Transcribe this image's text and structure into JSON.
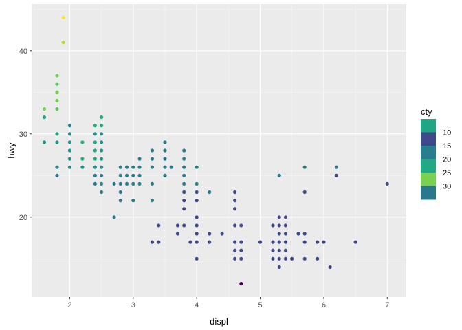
{
  "chart_data": {
    "type": "scatter",
    "xlabel": "displ",
    "ylabel": "hwy",
    "xlim": [
      1.4,
      7.3
    ],
    "ylim": [
      10.4,
      45.6
    ],
    "x_ticks": [
      2,
      3,
      4,
      5,
      6,
      7
    ],
    "y_ticks": [
      20,
      30,
      40
    ],
    "grid": true,
    "panel_background": "#ebebeb",
    "grid_color": "#ffffff",
    "legend": {
      "title": "cty",
      "placement": "right",
      "labels": [
        "10",
        "15",
        "20",
        "25",
        "30"
      ],
      "colors": [
        "#21a685",
        "#3e4a89",
        "#287d8e",
        "#22a884",
        "#7ad151",
        "#2a788e"
      ]
    },
    "points": [
      {
        "x": 1.6,
        "y": 33,
        "color": "#7ad151"
      },
      {
        "x": 1.6,
        "y": 32,
        "color": "#22a884"
      },
      {
        "x": 1.6,
        "y": 29,
        "color": "#21918c"
      },
      {
        "x": 1.8,
        "y": 37,
        "color": "#7ad151"
      },
      {
        "x": 1.8,
        "y": 36,
        "color": "#5ec962"
      },
      {
        "x": 1.8,
        "y": 35,
        "color": "#7ad151"
      },
      {
        "x": 1.8,
        "y": 34,
        "color": "#7ad151"
      },
      {
        "x": 1.8,
        "y": 33,
        "color": "#5ec962"
      },
      {
        "x": 1.8,
        "y": 30,
        "color": "#22a884"
      },
      {
        "x": 1.8,
        "y": 29,
        "color": "#21918c"
      },
      {
        "x": 1.8,
        "y": 26,
        "color": "#287d8e"
      },
      {
        "x": 1.8,
        "y": 25,
        "color": "#2a788e"
      },
      {
        "x": 1.9,
        "y": 44,
        "color": "#fde725"
      },
      {
        "x": 1.9,
        "y": 41,
        "color": "#b5de2b"
      },
      {
        "x": 2.0,
        "y": 31,
        "color": "#287d8e"
      },
      {
        "x": 2.0,
        "y": 30,
        "color": "#21918c"
      },
      {
        "x": 2.0,
        "y": 29,
        "color": "#21918c"
      },
      {
        "x": 2.0,
        "y": 28,
        "color": "#21918c"
      },
      {
        "x": 2.0,
        "y": 27,
        "color": "#21918c"
      },
      {
        "x": 2.0,
        "y": 26,
        "color": "#21918c"
      },
      {
        "x": 2.2,
        "y": 29,
        "color": "#22a884"
      },
      {
        "x": 2.2,
        "y": 27,
        "color": "#22a884"
      },
      {
        "x": 2.2,
        "y": 26,
        "color": "#21918c"
      },
      {
        "x": 2.4,
        "y": 31,
        "color": "#22a884"
      },
      {
        "x": 2.4,
        "y": 30,
        "color": "#21918c"
      },
      {
        "x": 2.4,
        "y": 29,
        "color": "#22a884"
      },
      {
        "x": 2.4,
        "y": 28,
        "color": "#22a884"
      },
      {
        "x": 2.4,
        "y": 27,
        "color": "#22a884"
      },
      {
        "x": 2.4,
        "y": 26,
        "color": "#21918c"
      },
      {
        "x": 2.4,
        "y": 25,
        "color": "#287d8e"
      },
      {
        "x": 2.4,
        "y": 24,
        "color": "#287d8e"
      },
      {
        "x": 2.5,
        "y": 32,
        "color": "#22a884"
      },
      {
        "x": 2.5,
        "y": 31,
        "color": "#22a884"
      },
      {
        "x": 2.5,
        "y": 30,
        "color": "#21918c"
      },
      {
        "x": 2.5,
        "y": 29,
        "color": "#21918c"
      },
      {
        "x": 2.5,
        "y": 28,
        "color": "#21918c"
      },
      {
        "x": 2.5,
        "y": 27,
        "color": "#21918c"
      },
      {
        "x": 2.5,
        "y": 26,
        "color": "#21918c"
      },
      {
        "x": 2.5,
        "y": 25,
        "color": "#287d8e"
      },
      {
        "x": 2.5,
        "y": 24,
        "color": "#287d8e"
      },
      {
        "x": 2.5,
        "y": 23,
        "color": "#287d8e"
      },
      {
        "x": 2.7,
        "y": 24,
        "color": "#287d8e"
      },
      {
        "x": 2.7,
        "y": 20,
        "color": "#287d8e"
      },
      {
        "x": 2.8,
        "y": 26,
        "color": "#287d8e"
      },
      {
        "x": 2.8,
        "y": 25,
        "color": "#287d8e"
      },
      {
        "x": 2.8,
        "y": 24,
        "color": "#287d8e"
      },
      {
        "x": 2.8,
        "y": 23,
        "color": "#287d8e"
      },
      {
        "x": 2.8,
        "y": 22,
        "color": "#287d8e"
      },
      {
        "x": 2.9,
        "y": 26,
        "color": "#287d8e"
      },
      {
        "x": 2.9,
        "y": 25,
        "color": "#287d8e"
      },
      {
        "x": 2.9,
        "y": 24,
        "color": "#287d8e"
      },
      {
        "x": 3.0,
        "y": 26,
        "color": "#287d8e"
      },
      {
        "x": 3.0,
        "y": 25,
        "color": "#287d8e"
      },
      {
        "x": 3.0,
        "y": 24,
        "color": "#287d8e"
      },
      {
        "x": 3.0,
        "y": 22,
        "color": "#287d8e"
      },
      {
        "x": 3.1,
        "y": 27,
        "color": "#287d8e"
      },
      {
        "x": 3.1,
        "y": 26,
        "color": "#287d8e"
      },
      {
        "x": 3.1,
        "y": 25,
        "color": "#287d8e"
      },
      {
        "x": 3.1,
        "y": 24,
        "color": "#287d8e"
      },
      {
        "x": 3.3,
        "y": 28,
        "color": "#287d8e"
      },
      {
        "x": 3.3,
        "y": 27,
        "color": "#287d8e"
      },
      {
        "x": 3.3,
        "y": 26,
        "color": "#287d8e"
      },
      {
        "x": 3.3,
        "y": 24,
        "color": "#287d8e"
      },
      {
        "x": 3.3,
        "y": 22,
        "color": "#287d8e"
      },
      {
        "x": 3.3,
        "y": 17,
        "color": "#3e4a89"
      },
      {
        "x": 3.4,
        "y": 19,
        "color": "#3e4a89"
      },
      {
        "x": 3.4,
        "y": 17,
        "color": "#3e4a89"
      },
      {
        "x": 3.5,
        "y": 29,
        "color": "#287d8e"
      },
      {
        "x": 3.5,
        "y": 28,
        "color": "#287d8e"
      },
      {
        "x": 3.5,
        "y": 27,
        "color": "#287d8e"
      },
      {
        "x": 3.5,
        "y": 26,
        "color": "#287d8e"
      },
      {
        "x": 3.5,
        "y": 25,
        "color": "#287d8e"
      },
      {
        "x": 3.6,
        "y": 26,
        "color": "#287d8e"
      },
      {
        "x": 3.7,
        "y": 19,
        "color": "#3e4a89"
      },
      {
        "x": 3.7,
        "y": 18,
        "color": "#3e4a89"
      },
      {
        "x": 3.8,
        "y": 28,
        "color": "#287d8e"
      },
      {
        "x": 3.8,
        "y": 27,
        "color": "#287d8e"
      },
      {
        "x": 3.8,
        "y": 26,
        "color": "#287d8e"
      },
      {
        "x": 3.8,
        "y": 25,
        "color": "#287d8e"
      },
      {
        "x": 3.8,
        "y": 24,
        "color": "#287d8e"
      },
      {
        "x": 3.8,
        "y": 23,
        "color": "#3e4a89"
      },
      {
        "x": 3.8,
        "y": 22,
        "color": "#3e4a89"
      },
      {
        "x": 3.8,
        "y": 21,
        "color": "#3e4a89"
      },
      {
        "x": 3.8,
        "y": 19,
        "color": "#3e4a89"
      },
      {
        "x": 3.9,
        "y": 17,
        "color": "#3e4a89"
      },
      {
        "x": 4.0,
        "y": 26,
        "color": "#287d8e"
      },
      {
        "x": 4.0,
        "y": 24,
        "color": "#287d8e"
      },
      {
        "x": 4.0,
        "y": 23,
        "color": "#3e4a89"
      },
      {
        "x": 4.0,
        "y": 22,
        "color": "#3e4a89"
      },
      {
        "x": 4.0,
        "y": 20,
        "color": "#3e4a89"
      },
      {
        "x": 4.0,
        "y": 19,
        "color": "#3e4a89"
      },
      {
        "x": 4.0,
        "y": 18,
        "color": "#3e4a89"
      },
      {
        "x": 4.0,
        "y": 17,
        "color": "#3e4a89"
      },
      {
        "x": 4.0,
        "y": 15,
        "color": "#3e4a89"
      },
      {
        "x": 4.2,
        "y": 23,
        "color": "#287d8e"
      },
      {
        "x": 4.2,
        "y": 18,
        "color": "#3e4a89"
      },
      {
        "x": 4.2,
        "y": 17,
        "color": "#3e4a89"
      },
      {
        "x": 4.4,
        "y": 18,
        "color": "#3e4a89"
      },
      {
        "x": 4.6,
        "y": 23,
        "color": "#3e4a89"
      },
      {
        "x": 4.6,
        "y": 22,
        "color": "#3e4a89"
      },
      {
        "x": 4.6,
        "y": 21,
        "color": "#3e4a89"
      },
      {
        "x": 4.6,
        "y": 19,
        "color": "#3e4a89"
      },
      {
        "x": 4.6,
        "y": 17,
        "color": "#3e4a89"
      },
      {
        "x": 4.6,
        "y": 16,
        "color": "#3e4a89"
      },
      {
        "x": 4.6,
        "y": 15,
        "color": "#3e4a89"
      },
      {
        "x": 4.7,
        "y": 19,
        "color": "#3e4a89"
      },
      {
        "x": 4.7,
        "y": 17,
        "color": "#3e4a89"
      },
      {
        "x": 4.7,
        "y": 16,
        "color": "#3e4a89"
      },
      {
        "x": 4.7,
        "y": 15,
        "color": "#3e4a89"
      },
      {
        "x": 4.7,
        "y": 12,
        "color": "#440154"
      },
      {
        "x": 5.0,
        "y": 17,
        "color": "#3e4a89"
      },
      {
        "x": 5.2,
        "y": 19,
        "color": "#3e4a89"
      },
      {
        "x": 5.2,
        "y": 17,
        "color": "#3e4a89"
      },
      {
        "x": 5.2,
        "y": 16,
        "color": "#3e4a89"
      },
      {
        "x": 5.2,
        "y": 15,
        "color": "#3e4a89"
      },
      {
        "x": 5.3,
        "y": 25,
        "color": "#287d8e"
      },
      {
        "x": 5.3,
        "y": 20,
        "color": "#3e4a89"
      },
      {
        "x": 5.3,
        "y": 19,
        "color": "#3e4a89"
      },
      {
        "x": 5.3,
        "y": 18,
        "color": "#3e4a89"
      },
      {
        "x": 5.3,
        "y": 17,
        "color": "#3e4a89"
      },
      {
        "x": 5.3,
        "y": 16,
        "color": "#3e4a89"
      },
      {
        "x": 5.3,
        "y": 15,
        "color": "#3e4a89"
      },
      {
        "x": 5.3,
        "y": 14,
        "color": "#3e4a89"
      },
      {
        "x": 5.4,
        "y": 20,
        "color": "#3e4a89"
      },
      {
        "x": 5.4,
        "y": 19,
        "color": "#3e4a89"
      },
      {
        "x": 5.4,
        "y": 18,
        "color": "#3e4a89"
      },
      {
        "x": 5.4,
        "y": 17,
        "color": "#3e4a89"
      },
      {
        "x": 5.4,
        "y": 16,
        "color": "#3e4a89"
      },
      {
        "x": 5.4,
        "y": 15,
        "color": "#3e4a89"
      },
      {
        "x": 5.5,
        "y": 15,
        "color": "#3e4a89"
      },
      {
        "x": 5.6,
        "y": 18,
        "color": "#3e4a89"
      },
      {
        "x": 5.7,
        "y": 26,
        "color": "#287d8e"
      },
      {
        "x": 5.7,
        "y": 23,
        "color": "#3e4a89"
      },
      {
        "x": 5.7,
        "y": 18,
        "color": "#3e4a89"
      },
      {
        "x": 5.7,
        "y": 17,
        "color": "#3e4a89"
      },
      {
        "x": 5.7,
        "y": 15,
        "color": "#3e4a89"
      },
      {
        "x": 5.9,
        "y": 17,
        "color": "#3e4a89"
      },
      {
        "x": 5.9,
        "y": 15,
        "color": "#3e4a89"
      },
      {
        "x": 6.0,
        "y": 17,
        "color": "#3e4a89"
      },
      {
        "x": 6.1,
        "y": 14,
        "color": "#3e4a89"
      },
      {
        "x": 6.2,
        "y": 26,
        "color": "#287d8e"
      },
      {
        "x": 6.2,
        "y": 25,
        "color": "#3e4a89"
      },
      {
        "x": 6.5,
        "y": 17,
        "color": "#3e4a89"
      },
      {
        "x": 7.0,
        "y": 24,
        "color": "#3e4a89"
      }
    ]
  }
}
